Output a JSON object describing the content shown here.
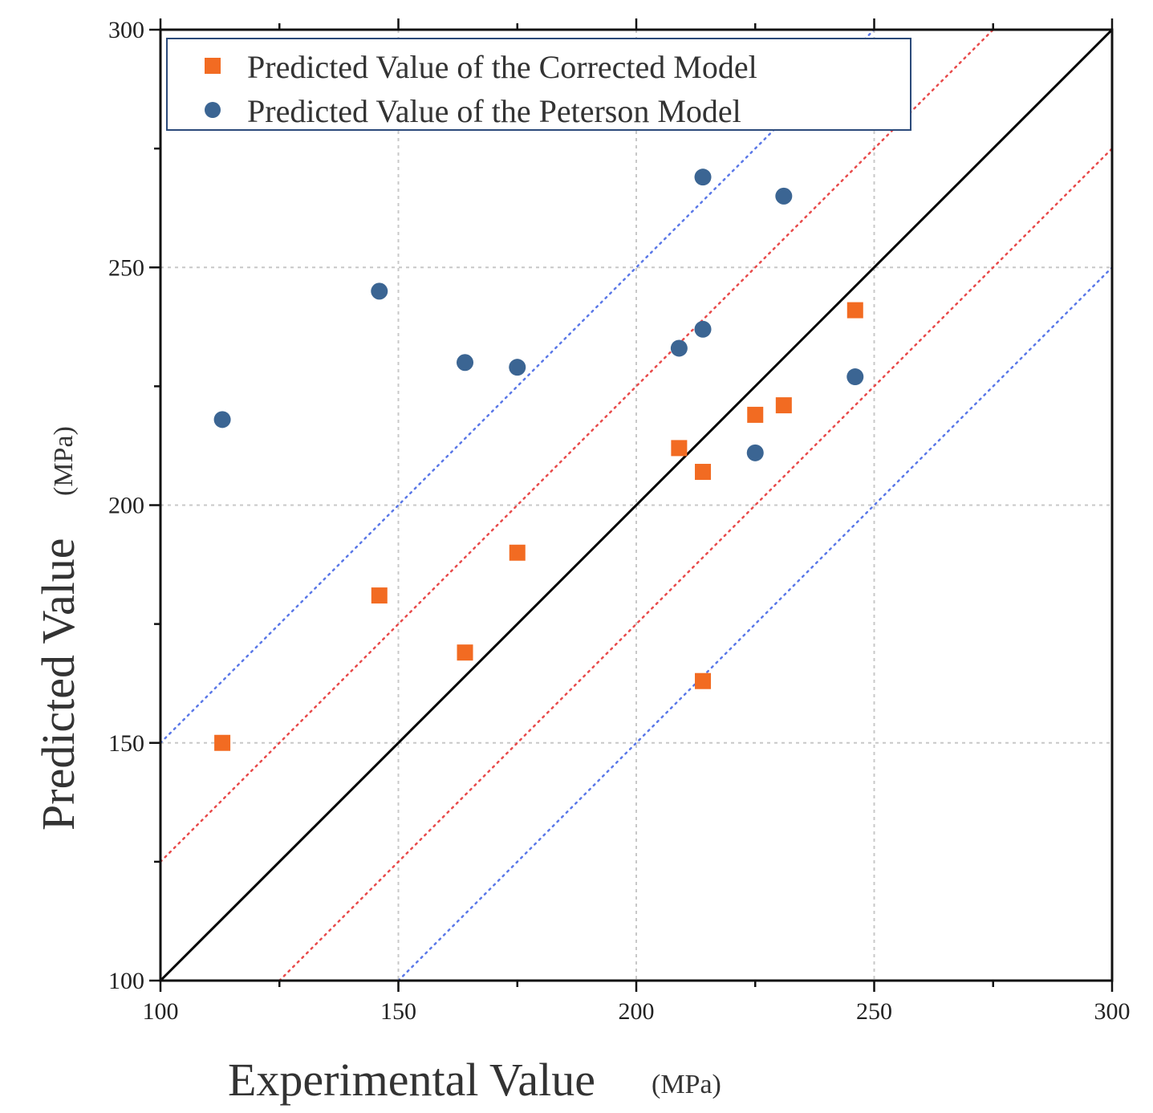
{
  "chart_data": {
    "type": "scatter",
    "title": "",
    "xlabel": "Experimental Value",
    "xlabel_unit": "(MPa)",
    "ylabel": "Predicted Value",
    "ylabel_unit": "(MPa)",
    "xlim": [
      100,
      300
    ],
    "ylim": [
      100,
      300
    ],
    "xticks": [
      100,
      150,
      200,
      250,
      300
    ],
    "yticks": [
      100,
      150,
      200,
      250,
      300
    ],
    "xtick_labels": [
      "100",
      "150",
      "200",
      "250",
      "300"
    ],
    "ytick_labels": [
      "100",
      "150",
      "200",
      "250",
      "300"
    ],
    "grid": true,
    "legend_position": "top-left",
    "series": [
      {
        "name": "Predicted Value of the Corrected Model",
        "marker": "square",
        "color": "#f26b22",
        "x": [
          113,
          146,
          164,
          175,
          209,
          214,
          214,
          225,
          231,
          246
        ],
        "y": [
          150,
          181,
          169,
          190,
          212,
          207,
          163,
          219,
          221,
          241
        ]
      },
      {
        "name": "Predicted Value of the Peterson Model",
        "marker": "circle",
        "color": "#3b6593",
        "x": [
          113,
          146,
          164,
          175,
          209,
          214,
          214,
          225,
          231,
          246
        ],
        "y": [
          218,
          245,
          230,
          229,
          233,
          237,
          269,
          211,
          265,
          227
        ]
      }
    ],
    "reference_lines": [
      {
        "name": "identity",
        "offset": 0,
        "style": "solid",
        "color": "#000000"
      },
      {
        "name": "upper-red",
        "offset": 25,
        "style": "dotted",
        "color": "#e84a4a"
      },
      {
        "name": "lower-red",
        "offset": -25,
        "style": "dotted",
        "color": "#e84a4a"
      },
      {
        "name": "upper-blue",
        "offset": 50,
        "style": "dotted",
        "color": "#5a78e8"
      },
      {
        "name": "lower-blue",
        "offset": -50,
        "style": "dotted",
        "color": "#5a78e8"
      }
    ]
  }
}
